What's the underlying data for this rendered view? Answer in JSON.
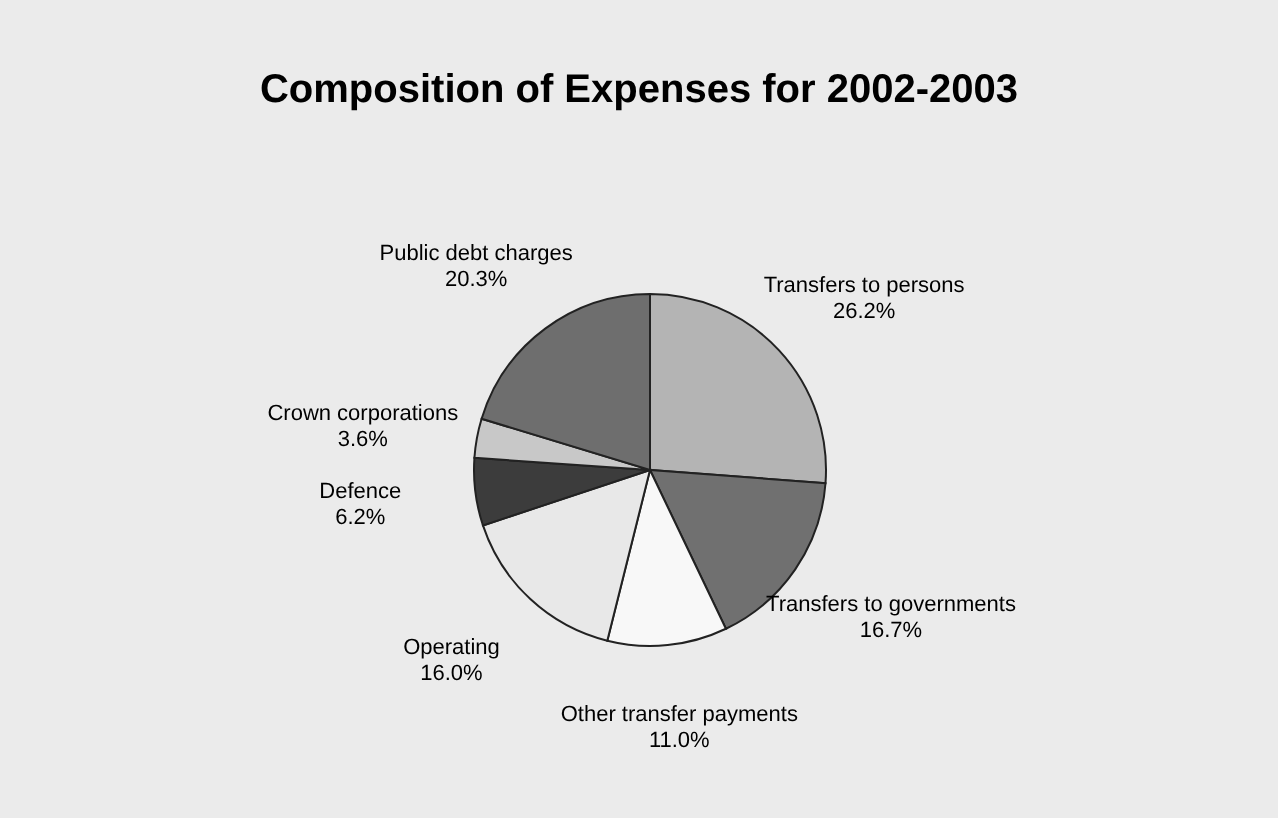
{
  "chart_data": {
    "type": "pie",
    "title": "Composition of Expenses for 2002-2003",
    "categories": [
      "Transfers to persons",
      "Transfers to governments",
      "Other transfer payments",
      "Operating",
      "Defence",
      "Crown corporations",
      "Public debt charges"
    ],
    "values": [
      26.2,
      16.7,
      11.0,
      16.0,
      6.2,
      3.6,
      20.3
    ],
    "value_labels": [
      "26.2%",
      "16.7%",
      "11.0%",
      "16.0%",
      "6.2%",
      "3.6%",
      "20.3%"
    ],
    "colors": [
      "#b4b4b4",
      "#707070",
      "#f8f8f8",
      "#e8e8e8",
      "#3c3c3c",
      "#c8c8c8",
      "#6e6e6e"
    ],
    "legend": false
  }
}
